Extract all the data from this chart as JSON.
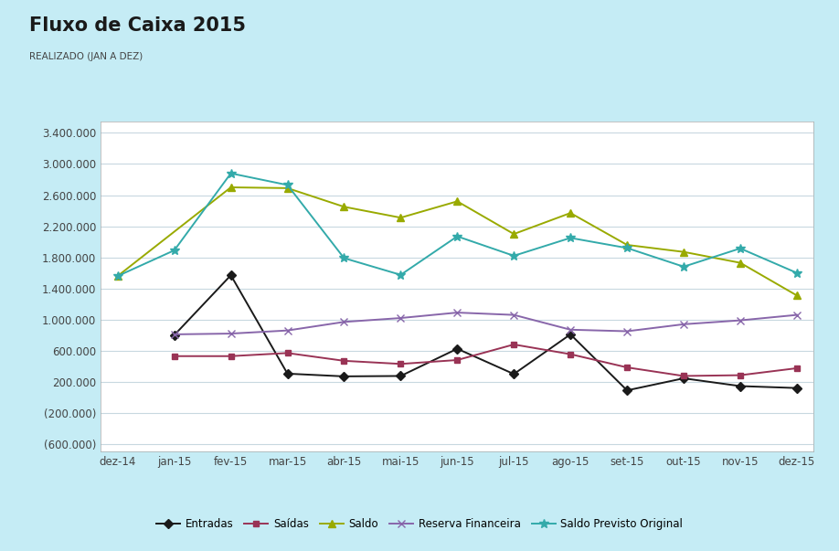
{
  "title": "Fluxo de Caixa 2015",
  "subtitle": "REALIZADO (JAN A DEZ)",
  "background_color": "#c5ecf5",
  "plot_bg_color": "#ffffff",
  "categories": [
    "dez-14",
    "jan-15",
    "fev-15",
    "mar-15",
    "abr-15",
    "mai-15",
    "jun-15",
    "jul-15",
    "ago-15",
    "set-15",
    "out-15",
    "nov-15",
    "dez-15"
  ],
  "entradas": [
    null,
    800000,
    1570000,
    305000,
    270000,
    275000,
    625000,
    300000,
    810000,
    90000,
    245000,
    145000,
    120000
  ],
  "saidas": [
    null,
    530000,
    530000,
    570000,
    470000,
    430000,
    480000,
    680000,
    555000,
    385000,
    275000,
    285000,
    375000
  ],
  "saldo": [
    1560000,
    null,
    2700000,
    2690000,
    2450000,
    2310000,
    2520000,
    2100000,
    2370000,
    1960000,
    1870000,
    1730000,
    1310000
  ],
  "reserva_financeira": [
    null,
    810000,
    820000,
    860000,
    970000,
    1020000,
    1090000,
    1060000,
    870000,
    850000,
    940000,
    990000,
    1060000
  ],
  "saldo_previsto": [
    1560000,
    1890000,
    2880000,
    2730000,
    1790000,
    1575000,
    2070000,
    1820000,
    2050000,
    1920000,
    1680000,
    1915000,
    1600000
  ],
  "entradas_color": "#1a1a1a",
  "saidas_color": "#993355",
  "saldo_color": "#99aa00",
  "reserva_color": "#8866aa",
  "saldo_previsto_color": "#33aaaa",
  "ylim_min": -700000,
  "ylim_max": 3550000,
  "yticks": [
    -600000,
    -200000,
    200000,
    600000,
    1000000,
    1400000,
    1800000,
    2200000,
    2600000,
    3000000,
    3400000
  ]
}
